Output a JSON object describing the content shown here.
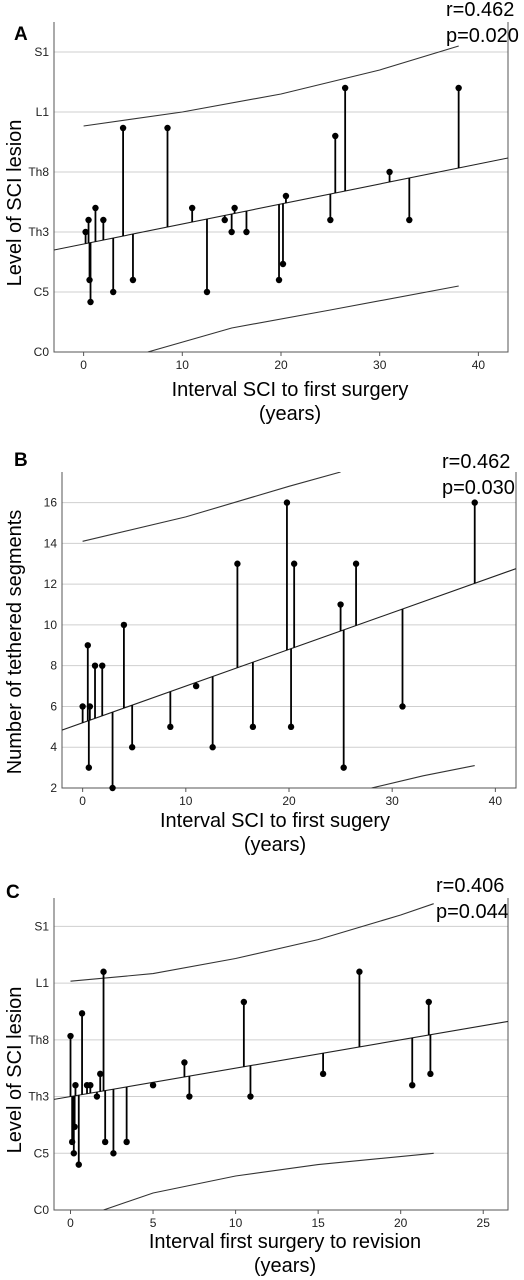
{
  "chart_data": [
    {
      "panel": "A",
      "type": "scatter",
      "stats": [
        "r=0.462",
        "p=0.020"
      ],
      "xlabel": [
        "Interval SCI to first surgery",
        "(years)"
      ],
      "ylabel": "Level of SCI lesion",
      "xlim": [
        -3,
        43
      ],
      "ylim": [
        0,
        16.5
      ],
      "x_ticks": [
        0,
        10,
        20,
        30,
        40
      ],
      "y_ticks": [
        {
          "label": "C0",
          "value": 0
        },
        {
          "label": "C5",
          "value": 3
        },
        {
          "label": "Th3",
          "value": 6
        },
        {
          "label": "Th8",
          "value": 9
        },
        {
          "label": "L1",
          "value": 12
        },
        {
          "label": "S1",
          "value": 15
        }
      ],
      "fit": {
        "intercept": 5.4,
        "slope": 0.1
      },
      "ci_upper": [
        [
          0,
          11.3
        ],
        [
          10,
          12.0
        ],
        [
          20,
          12.9
        ],
        [
          30,
          14.1
        ],
        [
          38,
          15.3
        ]
      ],
      "ci_lower": [
        [
          6.5,
          0
        ],
        [
          15,
          1.2
        ],
        [
          25,
          2.1
        ],
        [
          38,
          3.3
        ]
      ],
      "points": [
        {
          "x": 0.2,
          "y": 6.0
        },
        {
          "x": 0.5,
          "y": 6.6
        },
        {
          "x": 0.6,
          "y": 3.6
        },
        {
          "x": 0.7,
          "y": 2.5
        },
        {
          "x": 1.2,
          "y": 7.2
        },
        {
          "x": 2.0,
          "y": 6.6
        },
        {
          "x": 3.0,
          "y": 3.0
        },
        {
          "x": 4.0,
          "y": 11.2
        },
        {
          "x": 5.0,
          "y": 3.6
        },
        {
          "x": 8.5,
          "y": 11.2
        },
        {
          "x": 11.0,
          "y": 7.2
        },
        {
          "x": 12.5,
          "y": 3.0
        },
        {
          "x": 14.3,
          "y": 6.6
        },
        {
          "x": 15.0,
          "y": 6.0
        },
        {
          "x": 15.3,
          "y": 7.2
        },
        {
          "x": 16.5,
          "y": 6.0
        },
        {
          "x": 19.8,
          "y": 3.6
        },
        {
          "x": 20.2,
          "y": 4.4
        },
        {
          "x": 20.5,
          "y": 7.8
        },
        {
          "x": 25.0,
          "y": 6.6
        },
        {
          "x": 25.5,
          "y": 10.8
        },
        {
          "x": 26.5,
          "y": 13.2
        },
        {
          "x": 31.0,
          "y": 9.0
        },
        {
          "x": 33.0,
          "y": 6.6
        },
        {
          "x": 38.0,
          "y": 13.2
        }
      ]
    },
    {
      "panel": "B",
      "type": "scatter",
      "stats": [
        "r=0.462",
        "p=0.030"
      ],
      "xlabel": [
        "Interval SCI to first sugery",
        "(years)"
      ],
      "ylabel": "Number of tethered segments",
      "xlim": [
        -2,
        42
      ],
      "ylim": [
        2,
        17.5
      ],
      "x_ticks": [
        0,
        10,
        20,
        30,
        40
      ],
      "y_ticks": [
        {
          "label": "2",
          "value": 2
        },
        {
          "label": "4",
          "value": 4
        },
        {
          "label": "6",
          "value": 6
        },
        {
          "label": "8",
          "value": 8
        },
        {
          "label": "10",
          "value": 10
        },
        {
          "label": "12",
          "value": 12
        },
        {
          "label": "14",
          "value": 14
        },
        {
          "label": "16",
          "value": 16
        }
      ],
      "fit": {
        "intercept": 5.2,
        "slope": 0.18
      },
      "ci_upper": [
        [
          0,
          14.1
        ],
        [
          10,
          15.3
        ],
        [
          20,
          16.8
        ],
        [
          25,
          17.5
        ]
      ],
      "ci_lower": [
        [
          28,
          2.0
        ],
        [
          33,
          2.6
        ],
        [
          38,
          3.1
        ]
      ],
      "points": [
        {
          "x": 0.0,
          "y": 6
        },
        {
          "x": 0.5,
          "y": 9
        },
        {
          "x": 0.6,
          "y": 3
        },
        {
          "x": 0.7,
          "y": 6
        },
        {
          "x": 1.2,
          "y": 8
        },
        {
          "x": 1.9,
          "y": 8
        },
        {
          "x": 2.9,
          "y": 2
        },
        {
          "x": 4.0,
          "y": 10
        },
        {
          "x": 4.8,
          "y": 4
        },
        {
          "x": 8.5,
          "y": 5
        },
        {
          "x": 11.0,
          "y": 7
        },
        {
          "x": 12.6,
          "y": 4
        },
        {
          "x": 15.0,
          "y": 13
        },
        {
          "x": 16.5,
          "y": 5
        },
        {
          "x": 19.8,
          "y": 16
        },
        {
          "x": 20.2,
          "y": 5
        },
        {
          "x": 20.5,
          "y": 13
        },
        {
          "x": 25.0,
          "y": 11
        },
        {
          "x": 25.3,
          "y": 3
        },
        {
          "x": 26.5,
          "y": 13
        },
        {
          "x": 31.0,
          "y": 6
        },
        {
          "x": 38.0,
          "y": 16
        }
      ]
    },
    {
      "panel": "C",
      "type": "scatter",
      "stats": [
        "r=0.406",
        "p=0.044"
      ],
      "xlabel": [
        "Interval first surgery to revision",
        "(years)"
      ],
      "ylabel": "Level of SCI lesion",
      "xlim": [
        -1,
        26.5
      ],
      "ylim": [
        0,
        16.5
      ],
      "x_ticks": [
        0,
        5,
        10,
        15,
        20,
        25
      ],
      "y_ticks": [
        {
          "label": "C0",
          "value": 0
        },
        {
          "label": "C5",
          "value": 3
        },
        {
          "label": "Th3",
          "value": 6
        },
        {
          "label": "Th8",
          "value": 9
        },
        {
          "label": "L1",
          "value": 12
        },
        {
          "label": "S1",
          "value": 15
        }
      ],
      "fit": {
        "intercept": 6.0,
        "slope": 0.15
      },
      "ci_upper": [
        [
          0,
          12.1
        ],
        [
          5,
          12.5
        ],
        [
          10,
          13.3
        ],
        [
          15,
          14.3
        ],
        [
          20,
          15.6
        ],
        [
          22,
          16.2
        ]
      ],
      "ci_lower": [
        [
          2,
          0
        ],
        [
          5,
          0.9
        ],
        [
          10,
          1.8
        ],
        [
          15,
          2.4
        ],
        [
          22,
          3.0
        ]
      ],
      "points": [
        {
          "x": 0.0,
          "y": 9.2
        },
        {
          "x": 0.1,
          "y": 3.6
        },
        {
          "x": 0.2,
          "y": 3.0
        },
        {
          "x": 0.25,
          "y": 4.4
        },
        {
          "x": 0.3,
          "y": 6.6
        },
        {
          "x": 0.5,
          "y": 2.4
        },
        {
          "x": 0.7,
          "y": 10.4
        },
        {
          "x": 1.0,
          "y": 6.6
        },
        {
          "x": 1.2,
          "y": 6.6
        },
        {
          "x": 1.6,
          "y": 6.0
        },
        {
          "x": 1.8,
          "y": 7.2
        },
        {
          "x": 2.0,
          "y": 12.6
        },
        {
          "x": 2.1,
          "y": 3.6
        },
        {
          "x": 2.6,
          "y": 3.0
        },
        {
          "x": 3.4,
          "y": 3.6
        },
        {
          "x": 5.0,
          "y": 6.6
        },
        {
          "x": 6.9,
          "y": 7.8
        },
        {
          "x": 7.2,
          "y": 6.0
        },
        {
          "x": 10.5,
          "y": 11.0
        },
        {
          "x": 10.9,
          "y": 6.0
        },
        {
          "x": 15.3,
          "y": 7.2
        },
        {
          "x": 17.5,
          "y": 12.6
        },
        {
          "x": 20.7,
          "y": 6.6
        },
        {
          "x": 21.7,
          "y": 11.0
        },
        {
          "x": 21.8,
          "y": 7.2
        }
      ]
    }
  ]
}
